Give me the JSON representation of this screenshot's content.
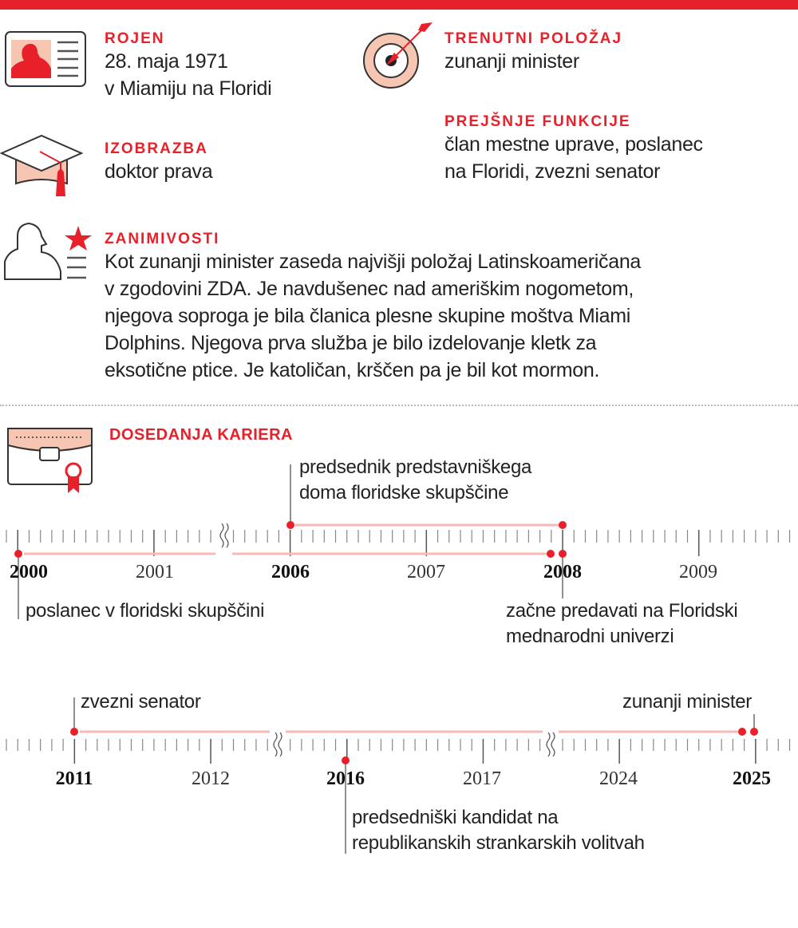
{
  "born": {
    "heading": "ROJEN",
    "lines": [
      "28. maja 1971",
      "v Miamiju na Floridi"
    ]
  },
  "education": {
    "heading": "IZOBRAZBA",
    "text": "doktor prava"
  },
  "current": {
    "heading": "TRENUTNI POLOŽAJ",
    "text": "zunanji minister"
  },
  "previous": {
    "heading": "PREJŠNJE FUNKCIJE",
    "lines": [
      "član mestne uprave, poslanec",
      "na Floridi, zvezni senator"
    ]
  },
  "trivia": {
    "heading": "ZANIMIVOSTI",
    "lines": [
      "Kot zunanji minister zaseda najvišji položaj Latinskoameričana",
      "v zgodovini ZDA. Je navdušenec nad ameriškim nogometom,",
      "njegova soproga je bila članica plesne skupine moštva Miami",
      "Dolphins. Njegova prva služba je bilo izdelovanje kletk za",
      "eksotične ptice. Je katoličan, krščen pa je bil kot mormon."
    ]
  },
  "career": {
    "heading": "DOSEDANJA KARIERA"
  },
  "timeline1": {
    "years": [
      {
        "label": "2000",
        "bold": true
      },
      {
        "label": "2001",
        "bold": false
      },
      {
        "label": "2006",
        "bold": true
      },
      {
        "label": "2007",
        "bold": false
      },
      {
        "label": "2008",
        "bold": true
      },
      {
        "label": "2009",
        "bold": false
      }
    ],
    "events": [
      {
        "lines": [
          "predsednik predstavniškega",
          "doma floridske skupščine"
        ]
      },
      {
        "lines": [
          "poslanec v floridski skupščini"
        ]
      },
      {
        "lines": [
          "začne predavati na Floridski",
          "mednarodni univerzi"
        ]
      }
    ]
  },
  "timeline2": {
    "years": [
      {
        "label": "2011",
        "bold": true
      },
      {
        "label": "2012",
        "bold": false
      },
      {
        "label": "2016",
        "bold": true
      },
      {
        "label": "2017",
        "bold": false
      },
      {
        "label": "2024",
        "bold": false
      },
      {
        "label": "2025",
        "bold": true
      }
    ],
    "events": [
      {
        "lines": [
          "zvezni senator"
        ]
      },
      {
        "lines": [
          "zunanji minister"
        ]
      },
      {
        "lines": [
          "predsedniški kandidat na",
          "republikanskih strankarskih volitvah"
        ]
      }
    ]
  },
  "colors": {
    "accent": "#e8202a",
    "light": "#f6c6b3",
    "span": "#f7b8b8"
  }
}
